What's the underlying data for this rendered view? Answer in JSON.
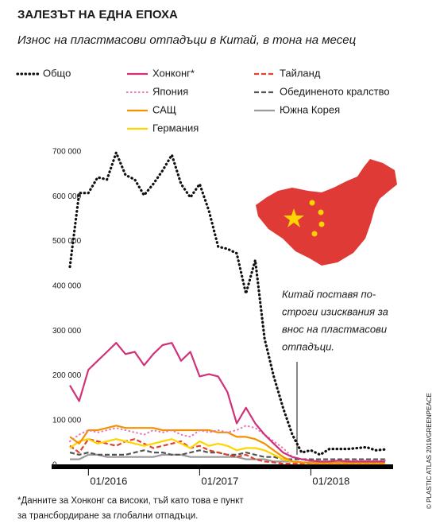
{
  "chart_data": {
    "type": "line",
    "title": "ЗАЛЕЗЪТ НА ЕДНА ЕПОХА",
    "subtitle": "Износ на пластмасови отпадъци в Китай, в тона на месец",
    "categories": [
      null,
      null,
      "01/2016",
      null,
      null,
      null,
      null,
      null,
      null,
      null,
      null,
      null,
      null,
      null,
      "01/2017",
      null,
      null,
      null,
      null,
      null,
      null,
      null,
      null,
      null,
      null,
      null,
      "01/2018",
      null,
      null,
      null,
      null,
      null,
      null,
      null,
      null
    ],
    "ylim": [
      0,
      700000
    ],
    "yticks": [
      0,
      {
        "value": 100000,
        "label": "100 000"
      },
      {
        "value": 200000,
        "label": "200 000"
      },
      {
        "value": 300000,
        "label": "300 000"
      },
      {
        "value": 400000,
        "label": "400 000"
      },
      {
        "value": 500000,
        "label": "500 000"
      },
      {
        "value": 600000,
        "label": "600 000"
      },
      {
        "value": 700000,
        "label": "700 000"
      }
    ],
    "grid": false,
    "series": [
      {
        "name": "Общо",
        "color": "#111111",
        "dash": "dotted",
        "values": [
          445000,
          610000,
          610000,
          645000,
          640000,
          700000,
          650000,
          640000,
          605000,
          630000,
          660000,
          695000,
          630000,
          600000,
          630000,
          570000,
          490000,
          485000,
          475000,
          385000,
          460000,
          285000,
          200000,
          130000,
          70000,
          30000,
          35000,
          25000,
          38000,
          38000,
          38000,
          40000,
          42000,
          35000,
          37000
        ]
      },
      {
        "name": "Хонконг*",
        "color": "#d1307a",
        "dash": "solid",
        "values": [
          180000,
          145000,
          215000,
          235000,
          255000,
          275000,
          250000,
          255000,
          225000,
          250000,
          270000,
          275000,
          235000,
          255000,
          200000,
          205000,
          200000,
          165000,
          95000,
          130000,
          95000,
          70000,
          50000,
          30000,
          20000,
          15000,
          12000,
          10000,
          10000,
          12000,
          10000,
          10000,
          10000,
          10000,
          10000
        ]
      },
      {
        "name": "Япония",
        "color": "#e77bb4",
        "dash": "dotted",
        "values": [
          55000,
          70000,
          80000,
          75000,
          80000,
          85000,
          80000,
          75000,
          70000,
          80000,
          75000,
          80000,
          70000,
          65000,
          80000,
          75000,
          80000,
          75000,
          80000,
          90000,
          85000,
          70000,
          55000,
          40000,
          20000,
          15000,
          10000,
          10000,
          10000,
          12000,
          12000,
          12000,
          12000,
          12000,
          12000
        ]
      },
      {
        "name": "САЩ",
        "color": "#f39200",
        "dash": "solid",
        "values": [
          65000,
          50000,
          80000,
          80000,
          85000,
          90000,
          85000,
          85000,
          85000,
          85000,
          80000,
          80000,
          80000,
          80000,
          80000,
          80000,
          75000,
          75000,
          65000,
          65000,
          60000,
          50000,
          35000,
          20000,
          10000,
          8000,
          7000,
          7000,
          7000,
          7000,
          7000,
          7000,
          7000,
          7000,
          7000
        ]
      },
      {
        "name": "Германия",
        "color": "#ffd400",
        "dash": "solid",
        "values": [
          40000,
          55000,
          60000,
          50000,
          55000,
          60000,
          55000,
          50000,
          45000,
          50000,
          55000,
          60000,
          50000,
          40000,
          55000,
          45000,
          50000,
          45000,
          35000,
          40000,
          40000,
          35000,
          25000,
          15000,
          10000,
          8000,
          6000,
          6000,
          6000,
          6000,
          6000,
          6000,
          6000,
          6000,
          6000
        ]
      },
      {
        "name": "Тайланд",
        "color": "#e2422b",
        "dash": "dashed",
        "values": [
          45000,
          30000,
          60000,
          55000,
          50000,
          45000,
          55000,
          60000,
          50000,
          40000,
          45000,
          50000,
          55000,
          40000,
          45000,
          35000,
          30000,
          25000,
          20000,
          25000,
          15000,
          10000,
          8000,
          5000,
          5000,
          5000,
          5000,
          5000,
          5000,
          5000,
          5000,
          5000,
          5000,
          5000,
          5000
        ]
      },
      {
        "name": "Обединеното кралство",
        "color": "#555555",
        "dash": "dashed",
        "values": [
          30000,
          25000,
          30000,
          25000,
          25000,
          25000,
          25000,
          30000,
          35000,
          30000,
          30000,
          25000,
          25000,
          30000,
          35000,
          30000,
          30000,
          25000,
          25000,
          30000,
          25000,
          20000,
          20000,
          15000,
          15000,
          15000,
          15000,
          15000,
          15000,
          15000,
          15000,
          15000,
          15000,
          15000,
          15000
        ]
      },
      {
        "name": "Южна Корея",
        "color": "#9a9a9a",
        "dash": "solid",
        "values": [
          15000,
          15000,
          25000,
          25000,
          20000,
          20000,
          20000,
          20000,
          20000,
          20000,
          25000,
          25000,
          25000,
          20000,
          20000,
          20000,
          20000,
          20000,
          20000,
          15000,
          15000,
          15000,
          10000,
          10000,
          10000,
          8000,
          8000,
          8000,
          8000,
          8000,
          8000,
          8000,
          8000,
          8000,
          8000
        ]
      }
    ],
    "annotation": [
      "Китай поставя по-",
      "строги изисквания за",
      "внос на пластмасови",
      "отпадъци."
    ],
    "footnote": [
      "*Данните за Хонконг са високи, тъй като това е пункт",
      "за трансбордиране за глобални отпадъци."
    ],
    "credit": "© PLASTIC ATLAS 2019/GREENPEACE"
  }
}
